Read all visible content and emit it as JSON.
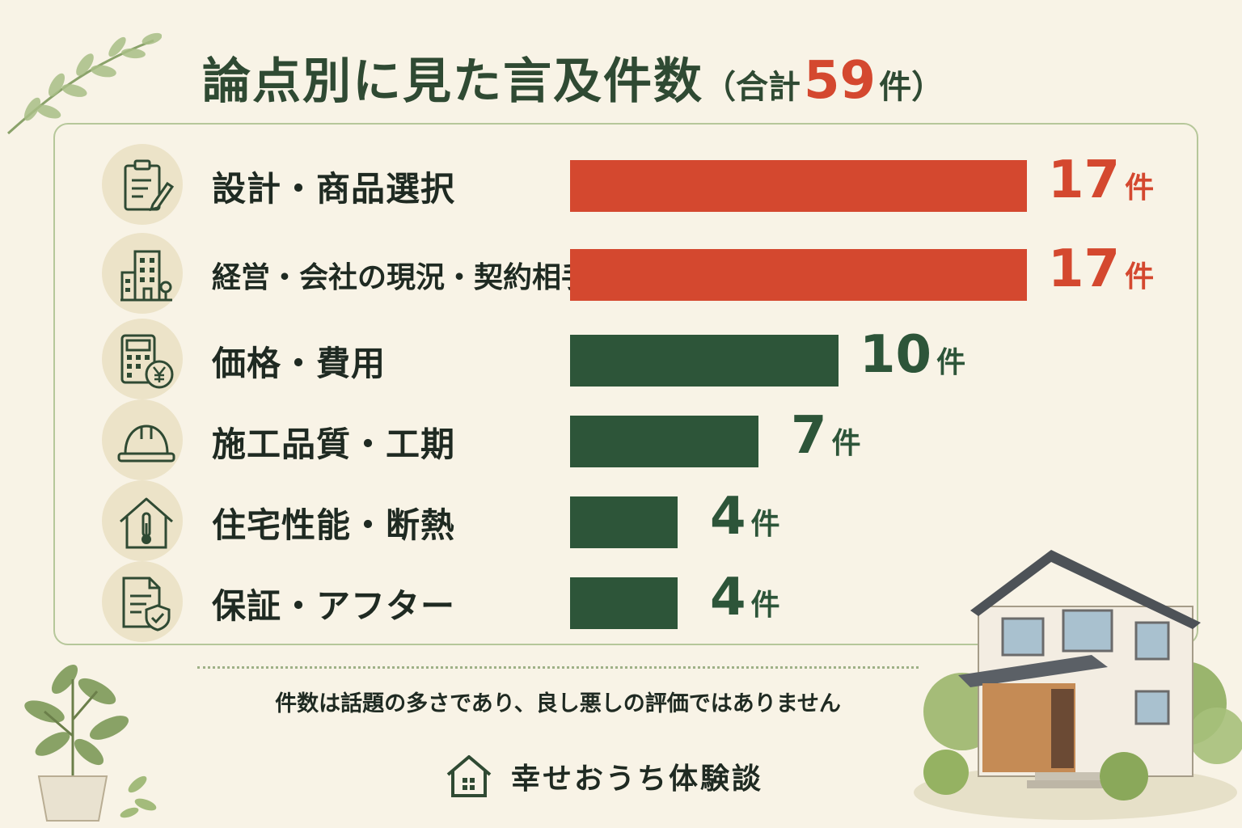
{
  "header": {
    "title": "論点別に見た言及件数",
    "paren_open": "（",
    "total_label": "合計",
    "total_value": "59",
    "total_unit": "件",
    "paren_close": "）"
  },
  "colors": {
    "highlight": "#d4482f",
    "normal": "#2d5539",
    "icon_stroke": "#2f4a33",
    "icon_bg": "#ece3c8"
  },
  "chart_data": {
    "type": "bar",
    "orientation": "horizontal",
    "title": "論点別に見た言及件数（合計59件）",
    "total": 59,
    "unit": "件",
    "xlim": [
      0,
      17
    ],
    "grid": false,
    "categories": [
      "設計・商品選択",
      "経営・会社の現況・契約相手",
      "価格・費用",
      "施工品質・工期",
      "住宅性能・断熱",
      "保証・アフター"
    ],
    "values": [
      17,
      17,
      10,
      7,
      4,
      4
    ],
    "icons": [
      "clipboard-pencil-icon",
      "office-building-icon",
      "calculator-yen-icon",
      "hard-hat-icon",
      "house-thermometer-icon",
      "document-shield-icon"
    ],
    "highlight": [
      true,
      true,
      false,
      false,
      false,
      false
    ]
  },
  "footer": {
    "note": "件数は話題の多さであり、良し悪しの評価ではありません",
    "brand_name": "幸せおうち体験談",
    "brand_icon": "house-logo-icon"
  }
}
